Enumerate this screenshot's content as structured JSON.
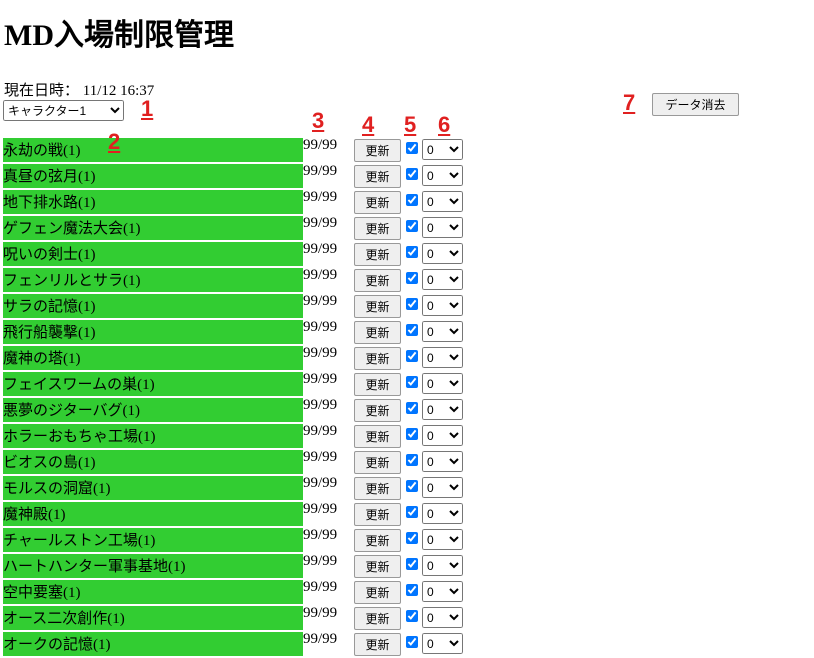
{
  "header": {
    "title": "MD入場制限管理",
    "datetime": "現在日時： 11/12 16:37",
    "character": "キャラクター1",
    "clear_button": "データ消去"
  },
  "annotations": [
    "1",
    "2",
    "3",
    "4",
    "5",
    "6",
    "7"
  ],
  "rows": [
    {
      "name": "永劫の戦(1)",
      "count": "99/99",
      "button": "更新",
      "select": "0"
    },
    {
      "name": "真昼の弦月(1)",
      "count": "99/99",
      "button": "更新",
      "select": "0"
    },
    {
      "name": "地下排水路(1)",
      "count": "99/99",
      "button": "更新",
      "select": "0"
    },
    {
      "name": "ゲフェン魔法大会(1)",
      "count": "99/99",
      "button": "更新",
      "select": "0"
    },
    {
      "name": "呪いの剣士(1)",
      "count": "99/99",
      "button": "更新",
      "select": "0"
    },
    {
      "name": "フェンリルとサラ(1)",
      "count": "99/99",
      "button": "更新",
      "select": "0"
    },
    {
      "name": "サラの記憶(1)",
      "count": "99/99",
      "button": "更新",
      "select": "0"
    },
    {
      "name": "飛行船襲撃(1)",
      "count": "99/99",
      "button": "更新",
      "select": "0"
    },
    {
      "name": "魔神の塔(1)",
      "count": "99/99",
      "button": "更新",
      "select": "0"
    },
    {
      "name": "フェイスワームの巣(1)",
      "count": "99/99",
      "button": "更新",
      "select": "0"
    },
    {
      "name": "悪夢のジターバグ(1)",
      "count": "99/99",
      "button": "更新",
      "select": "0"
    },
    {
      "name": "ホラーおもちゃ工場(1)",
      "count": "99/99",
      "button": "更新",
      "select": "0"
    },
    {
      "name": "ビオスの島(1)",
      "count": "99/99",
      "button": "更新",
      "select": "0"
    },
    {
      "name": "モルスの洞窟(1)",
      "count": "99/99",
      "button": "更新",
      "select": "0"
    },
    {
      "name": "魔神殿(1)",
      "count": "99/99",
      "button": "更新",
      "select": "0"
    },
    {
      "name": "チャールストン工場(1)",
      "count": "99/99",
      "button": "更新",
      "select": "0"
    },
    {
      "name": "ハートハンター軍事基地(1)",
      "count": "99/99",
      "button": "更新",
      "select": "0"
    },
    {
      "name": "空中要塞(1)",
      "count": "99/99",
      "button": "更新",
      "select": "0"
    },
    {
      "name": "オース二次創作(1)",
      "count": "99/99",
      "button": "更新",
      "select": "0"
    },
    {
      "name": "オークの記憶(1)",
      "count": "99/99",
      "button": "更新",
      "select": "0"
    }
  ]
}
